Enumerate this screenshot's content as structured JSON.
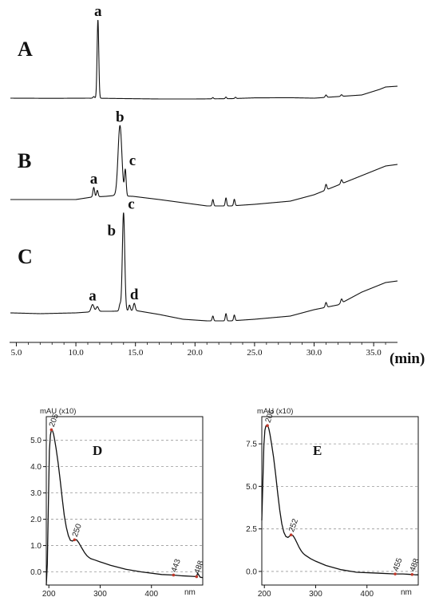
{
  "figure": {
    "top_panel_labels": [
      "A",
      "B",
      "C"
    ],
    "bottom_panel_labels": [
      "D",
      "E"
    ]
  },
  "chart_data": [
    {
      "type": "line",
      "panel": "chromatograms",
      "xlabel": "(min)",
      "xlim": [
        4.5,
        37
      ],
      "x_ticks": [
        5.0,
        10.0,
        15.0,
        20.0,
        25.0,
        30.0,
        35.0
      ],
      "x_tick_labels": [
        "5.0",
        "10.0",
        "15.0",
        "20.0",
        "25.0",
        "30.0",
        "35.0"
      ],
      "series": [
        {
          "name": "A",
          "baseline": [
            [
              4.5,
              0
            ],
            [
              8,
              -0.2
            ],
            [
              11,
              0
            ],
            [
              12,
              -0.1
            ],
            [
              14,
              -0.5
            ],
            [
              17,
              -1
            ],
            [
              20,
              -1
            ],
            [
              23,
              -0.6
            ],
            [
              25,
              0.4
            ],
            [
              28,
              0.6
            ],
            [
              30,
              0
            ],
            [
              31,
              1
            ],
            [
              32,
              2
            ],
            [
              34,
              4
            ],
            [
              35.5,
              11
            ],
            [
              36,
              14
            ],
            [
              37,
              15
            ]
          ],
          "peaks": [
            {
              "x": 11.85,
              "h": 98,
              "w": 0.07
            },
            {
              "x": 11.5,
              "h": 2,
              "w": 0.07
            },
            {
              "x": 21.5,
              "h": 1.5,
              "w": 0.06
            },
            {
              "x": 22.6,
              "h": 2,
              "w": 0.06
            },
            {
              "x": 23.4,
              "h": 1.5,
              "w": 0.06
            },
            {
              "x": 31.0,
              "h": 3,
              "w": 0.07
            },
            {
              "x": 32.3,
              "h": 2,
              "w": 0.07
            }
          ],
          "peak_labels": [
            {
              "text": "a",
              "x": 11.85
            }
          ]
        },
        {
          "name": "B",
          "baseline": [
            [
              4.5,
              0
            ],
            [
              8,
              0
            ],
            [
              10,
              0
            ],
            [
              11.3,
              3
            ],
            [
              12.5,
              4
            ],
            [
              13.2,
              5
            ],
            [
              14.8,
              4
            ],
            [
              17,
              0
            ],
            [
              19,
              -4
            ],
            [
              21,
              -8
            ],
            [
              23,
              -8
            ],
            [
              25,
              -6
            ],
            [
              28,
              -2
            ],
            [
              30,
              6
            ],
            [
              32,
              18
            ],
            [
              34,
              30
            ],
            [
              36,
              42
            ],
            [
              37,
              44
            ]
          ],
          "peaks": [
            {
              "x": 13.7,
              "h": 88,
              "w": 0.16
            },
            {
              "x": 14.15,
              "h": 32,
              "w": 0.07
            },
            {
              "x": 11.5,
              "h": 12,
              "w": 0.07
            },
            {
              "x": 11.8,
              "h": 8,
              "w": 0.07
            },
            {
              "x": 21.5,
              "h": 8,
              "w": 0.06
            },
            {
              "x": 22.6,
              "h": 10,
              "w": 0.06
            },
            {
              "x": 23.3,
              "h": 8,
              "w": 0.06
            },
            {
              "x": 31.0,
              "h": 7,
              "w": 0.07
            },
            {
              "x": 32.3,
              "h": 5,
              "w": 0.07
            }
          ],
          "peak_labels": [
            {
              "text": "a",
              "x": 11.5
            },
            {
              "text": "b",
              "x": 13.7
            },
            {
              "text": "c",
              "x": 14.15
            }
          ]
        },
        {
          "name": "C",
          "baseline": [
            [
              4.5,
              0
            ],
            [
              7,
              -1
            ],
            [
              10,
              0
            ],
            [
              12,
              2
            ],
            [
              13,
              2
            ],
            [
              15,
              3
            ],
            [
              17,
              -2
            ],
            [
              19,
              -8
            ],
            [
              21,
              -10
            ],
            [
              23,
              -10
            ],
            [
              25,
              -8
            ],
            [
              28,
              -4
            ],
            [
              30,
              4
            ],
            [
              32,
              10
            ],
            [
              34,
              26
            ],
            [
              36,
              38
            ],
            [
              37,
              40
            ]
          ],
          "peaks": [
            {
              "x": 14.0,
              "h": 123,
              "w": 0.1
            },
            {
              "x": 11.4,
              "h": 9,
              "w": 0.12
            },
            {
              "x": 11.8,
              "h": 6,
              "w": 0.1
            },
            {
              "x": 13.7,
              "h": 8,
              "w": 0.07
            },
            {
              "x": 14.5,
              "h": 7,
              "w": 0.07
            },
            {
              "x": 14.9,
              "h": 9,
              "w": 0.08
            },
            {
              "x": 21.5,
              "h": 6,
              "w": 0.06
            },
            {
              "x": 22.6,
              "h": 9,
              "w": 0.06
            },
            {
              "x": 23.3,
              "h": 7,
              "w": 0.06
            },
            {
              "x": 31.0,
              "h": 6,
              "w": 0.07
            },
            {
              "x": 32.3,
              "h": 5,
              "w": 0.07
            }
          ],
          "peak_labels": [
            {
              "text": "a",
              "x": 11.4
            },
            {
              "text": "b",
              "x": 13.8
            },
            {
              "text": "c",
              "x": 14.05
            },
            {
              "text": "d",
              "x": 14.9
            }
          ]
        }
      ]
    },
    {
      "type": "line",
      "panel": "D",
      "title": "mAU (x10)",
      "xlabel": "nm",
      "xlim": [
        195,
        500
      ],
      "ylim": [
        -0.5,
        5.9
      ],
      "x_ticks": [
        200,
        300,
        400
      ],
      "y_ticks": [
        0.0,
        1.0,
        2.0,
        3.0,
        4.0,
        5.0
      ],
      "y_tick_labels": [
        "0.0",
        "1.0",
        "2.0",
        "3.0",
        "4.0",
        "5.0"
      ],
      "grid": true,
      "x": [
        195,
        197,
        199,
        201,
        203,
        205,
        207,
        209,
        211,
        214,
        218,
        222,
        226,
        230,
        234,
        238,
        242,
        246,
        250,
        254,
        258,
        262,
        266,
        270,
        274,
        278,
        282,
        290,
        300,
        320,
        350,
        380,
        420,
        443,
        460,
        480,
        488,
        490,
        495,
        500
      ],
      "y": [
        -0.5,
        0.3,
        2.5,
        4.6,
        5.2,
        5.4,
        5.37,
        5.25,
        5.05,
        4.7,
        4.15,
        3.5,
        2.8,
        2.15,
        1.7,
        1.38,
        1.2,
        1.17,
        1.22,
        1.22,
        1.12,
        0.98,
        0.85,
        0.72,
        0.62,
        0.55,
        0.5,
        0.45,
        0.38,
        0.25,
        0.1,
        0.0,
        -0.1,
        -0.12,
        -0.15,
        -0.17,
        -0.18,
        -0.05,
        -0.2,
        -0.22
      ],
      "peak_labels": [
        {
          "text": "205",
          "x": 205
        },
        {
          "text": "250",
          "x": 250
        },
        {
          "text": "443",
          "x": 443
        },
        {
          "text": "488",
          "x": 488
        }
      ]
    },
    {
      "type": "line",
      "panel": "E",
      "title": "mAU (x10)",
      "xlabel": "nm",
      "xlim": [
        195,
        500
      ],
      "ylim": [
        -0.8,
        9.1
      ],
      "x_ticks": [
        200,
        300,
        400
      ],
      "y_ticks": [
        0.0,
        2.5,
        5.0,
        7.5
      ],
      "y_tick_labels": [
        "0.0",
        "2.5",
        "5.0",
        "7.5"
      ],
      "grid": true,
      "x": [
        195,
        197,
        199,
        201,
        203,
        205,
        207,
        209,
        211,
        214,
        218,
        222,
        226,
        230,
        234,
        238,
        242,
        246,
        250,
        252,
        256,
        260,
        264,
        268,
        272,
        276,
        280,
        290,
        300,
        320,
        350,
        380,
        420,
        455,
        470,
        488,
        495,
        500
      ],
      "y": [
        3.0,
        5.2,
        7.4,
        8.3,
        8.55,
        8.6,
        8.55,
        8.35,
        8.05,
        7.5,
        6.7,
        5.7,
        4.6,
        3.6,
        2.8,
        2.3,
        2.05,
        2.0,
        2.1,
        2.15,
        2.1,
        1.9,
        1.65,
        1.4,
        1.2,
        1.05,
        0.95,
        0.75,
        0.6,
        0.35,
        0.1,
        -0.05,
        -0.1,
        -0.15,
        -0.15,
        -0.18,
        -0.2,
        -0.2
      ],
      "peak_labels": [
        {
          "text": "206",
          "x": 206
        },
        {
          "text": "252",
          "x": 252
        },
        {
          "text": "455",
          "x": 455
        },
        {
          "text": "488",
          "x": 488
        }
      ]
    }
  ]
}
